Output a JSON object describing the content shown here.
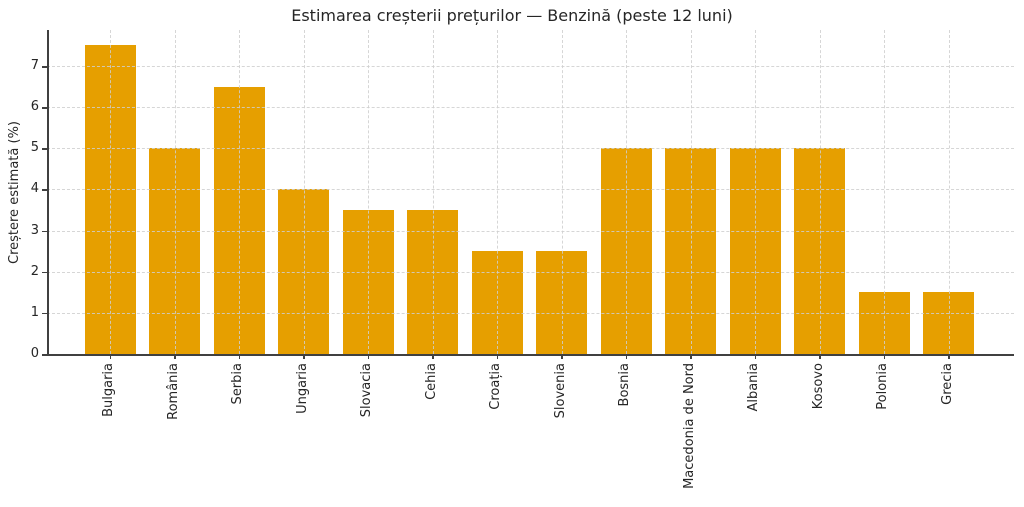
{
  "chart_data": {
    "type": "bar",
    "title": "Estimarea creșterii prețurilor — Benzină (peste 12 luni)",
    "xlabel": "",
    "ylabel": "Creștere estimată (%)",
    "categories": [
      "Bulgaria",
      "România",
      "Serbia",
      "Ungaria",
      "Slovacia",
      "Cehia",
      "Croația",
      "Slovenia",
      "Bosnia",
      "Macedonia de Nord",
      "Albania",
      "Kosovo",
      "Polonia",
      "Grecia"
    ],
    "values": [
      7.5,
      5,
      6.5,
      4,
      3.5,
      3.5,
      2.5,
      2.5,
      5,
      5,
      5,
      5,
      1.5,
      1.5
    ],
    "ylim": [
      0,
      7.875
    ],
    "yticks": [
      0,
      1,
      2,
      3,
      4,
      5,
      6,
      7
    ],
    "grid": true,
    "legend": false,
    "bar_color": "#E69F00",
    "grid_color": "#cfcfcf",
    "axis_color": "#404040",
    "text_color": "#262626",
    "background_color": "#ffffff"
  }
}
